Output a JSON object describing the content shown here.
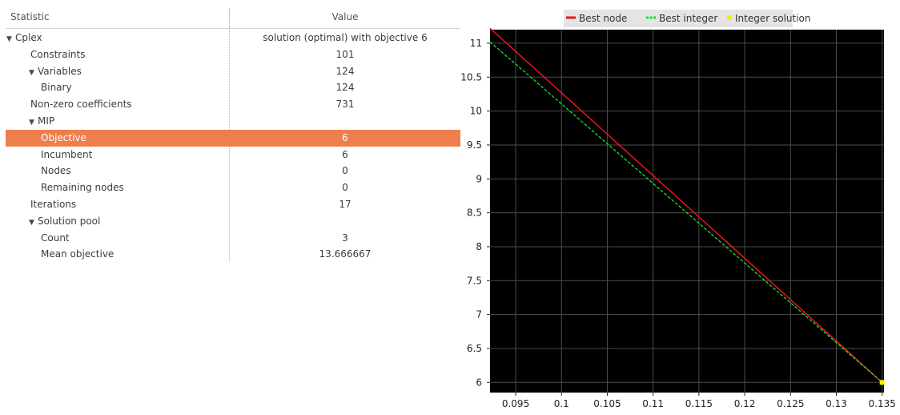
{
  "table": {
    "header_statistic": "Statistic",
    "header_value": "Value",
    "rows": [
      {
        "label": "Cplex",
        "value": "solution (optimal) with objective 6",
        "depth": 0,
        "expander": true,
        "selected": false
      },
      {
        "label": "Constraints",
        "value": "101",
        "depth": 1,
        "expander": false,
        "selected": false
      },
      {
        "label": "Variables",
        "value": "124",
        "depth": 1,
        "expander": true,
        "selected": false
      },
      {
        "label": "Binary",
        "value": "124",
        "depth": 2,
        "expander": false,
        "selected": false
      },
      {
        "label": "Non-zero coefficients",
        "value": "731",
        "depth": 1,
        "expander": false,
        "selected": false
      },
      {
        "label": "MIP",
        "value": "",
        "depth": 1,
        "expander": true,
        "selected": false
      },
      {
        "label": "Objective",
        "value": "6",
        "depth": 2,
        "expander": false,
        "selected": true
      },
      {
        "label": "Incumbent",
        "value": "6",
        "depth": 2,
        "expander": false,
        "selected": false
      },
      {
        "label": "Nodes",
        "value": "0",
        "depth": 2,
        "expander": false,
        "selected": false
      },
      {
        "label": "Remaining nodes",
        "value": "0",
        "depth": 2,
        "expander": false,
        "selected": false
      },
      {
        "label": "Iterations",
        "value": "17",
        "depth": 1,
        "expander": false,
        "selected": false
      },
      {
        "label": "Solution pool",
        "value": "",
        "depth": 1,
        "expander": true,
        "selected": false
      },
      {
        "label": "Count",
        "value": "3",
        "depth": 2,
        "expander": false,
        "selected": false
      },
      {
        "label": "Mean objective",
        "value": "13.666667",
        "depth": 2,
        "expander": false,
        "selected": false
      }
    ]
  },
  "chart_data": {
    "type": "line",
    "legend_position": "top",
    "grid": true,
    "background": "#000000",
    "xlim": [
      0.0922,
      0.1352
    ],
    "ylim": [
      5.85,
      11.2
    ],
    "x_ticks": [
      "0.095",
      "0.1",
      "0.105",
      "0.11",
      "0.115",
      "0.12",
      "0.125",
      "0.13",
      "0.135"
    ],
    "y_ticks": [
      "6",
      "6.5",
      "7",
      "7.5",
      "8",
      "8.5",
      "9",
      "9.5",
      "10",
      "10.5",
      "11"
    ],
    "series": [
      {
        "name": "Best node",
        "color": "#e8141b",
        "style": "solid",
        "points": [
          [
            0.0922,
            11.22
          ],
          [
            0.135,
            6.0
          ]
        ]
      },
      {
        "name": "Best integer",
        "color": "#19e02a",
        "style": "dashed",
        "points": [
          [
            0.0922,
            11.02
          ],
          [
            0.135,
            6.0
          ]
        ]
      },
      {
        "name": "Integer solution",
        "color": "#f5f000",
        "style": "marker",
        "points": [
          [
            0.135,
            6.0
          ]
        ]
      }
    ]
  }
}
